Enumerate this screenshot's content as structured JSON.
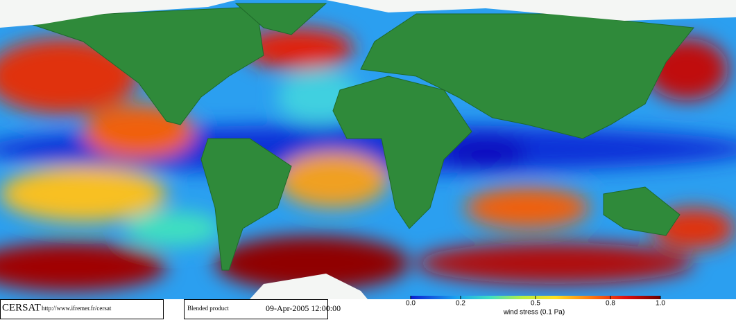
{
  "footer": {
    "logo": "CERSAT",
    "url": "http://www.ifremer.fr/cersat",
    "product": "Blended product",
    "date": "09-Apr-2005 12:00:00"
  },
  "colorbar": {
    "label": "wind stress (0.1 Pa)",
    "lim": [
      0,
      1
    ],
    "ticks": [
      {
        "value": 0,
        "label": "0.0"
      },
      0.2,
      0.5,
      0.8,
      {
        "value": 1,
        "label": "1.0"
      }
    ]
  }
}
